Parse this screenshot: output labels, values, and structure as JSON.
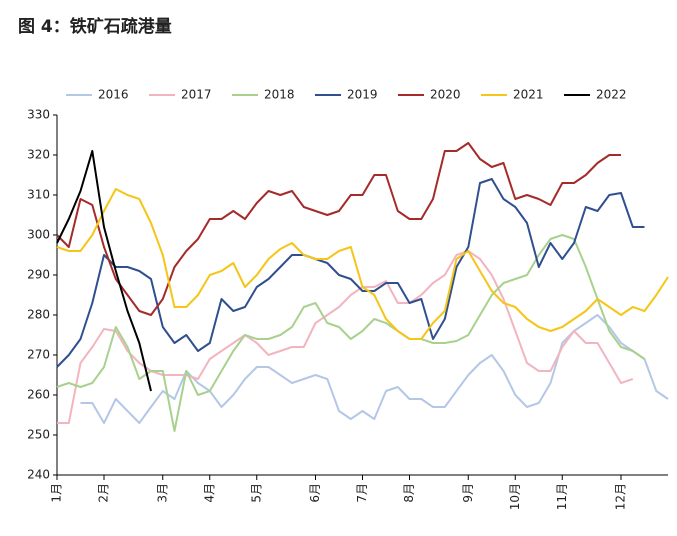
{
  "chart_data": {
    "type": "line",
    "title": "图 4：铁矿石疏港量",
    "categories": [
      "1月",
      null,
      null,
      null,
      "2月",
      null,
      null,
      null,
      null,
      "3月",
      null,
      null,
      null,
      "4月",
      null,
      null,
      null,
      "5月",
      null,
      null,
      null,
      null,
      "6月",
      null,
      null,
      null,
      "7月",
      null,
      null,
      null,
      "8月",
      null,
      null,
      null,
      null,
      "9月",
      null,
      null,
      null,
      "10月",
      null,
      null,
      null,
      "11月",
      null,
      null,
      null,
      null,
      "12月",
      null,
      null,
      null,
      null
    ],
    "ylim": [
      240,
      330
    ],
    "yticks": [
      240,
      250,
      260,
      270,
      280,
      290,
      300,
      310,
      320,
      330
    ],
    "grid": false,
    "legend": "top",
    "series": [
      {
        "name": "2016",
        "color": "#b4c7e7",
        "values": [
          null,
          null,
          258,
          258,
          253,
          259,
          256,
          253,
          257,
          261,
          259,
          266,
          263,
          261,
          257,
          260,
          264,
          267,
          267,
          265,
          263,
          264,
          265,
          264,
          256,
          254,
          256,
          254,
          261,
          262,
          259,
          259,
          257,
          257,
          261,
          265,
          268,
          270,
          266,
          260,
          257,
          258,
          263,
          273,
          276,
          278,
          280,
          277,
          273,
          271,
          269,
          261,
          259
        ]
      },
      {
        "name": "2017",
        "color": "#f2b5c0",
        "values": [
          253,
          253,
          268,
          272,
          276.5,
          276,
          271,
          268,
          266,
          265,
          265,
          265,
          264,
          269,
          271,
          273,
          275,
          273,
          270,
          271,
          272,
          272,
          278,
          280,
          282,
          285,
          287,
          287,
          288.5,
          283,
          283,
          285,
          288,
          290,
          295,
          296,
          294,
          290,
          284,
          276,
          268,
          266,
          266,
          272,
          276,
          273,
          273,
          268,
          263,
          264,
          null,
          null,
          null
        ]
      },
      {
        "name": "2018",
        "color": "#a9d18e",
        "values": [
          262,
          263,
          262,
          263,
          267,
          277,
          272,
          264,
          266,
          266,
          251,
          266,
          260,
          261,
          266,
          271,
          275,
          274,
          274,
          275,
          277,
          282,
          283,
          278,
          277,
          274,
          276,
          279,
          278,
          276,
          274,
          274,
          273,
          273,
          273.5,
          275,
          280,
          285,
          288,
          289,
          290,
          295,
          299,
          300,
          299,
          292,
          284,
          276,
          272,
          271,
          269,
          null,
          null
        ]
      },
      {
        "name": "2019",
        "color": "#2f4f8f",
        "values": [
          267,
          270,
          274,
          283,
          295,
          292,
          292,
          291,
          289,
          277,
          273,
          275,
          271,
          273,
          284,
          281,
          282,
          287,
          289,
          292,
          295,
          295,
          294,
          293,
          290,
          289,
          286,
          286,
          288,
          288,
          283,
          284,
          274,
          279,
          292,
          297,
          313,
          314,
          309,
          307,
          303,
          292,
          298,
          294,
          298,
          307,
          306,
          310,
          310.5,
          302,
          302,
          null,
          null
        ]
      },
      {
        "name": "2020",
        "color": "#a52a2a",
        "values": [
          300,
          297,
          309,
          307.5,
          297,
          289,
          285,
          281,
          280,
          284,
          292,
          296,
          299,
          304,
          304,
          306,
          304,
          308,
          311,
          310,
          311,
          307,
          306,
          305,
          306,
          310,
          310,
          315,
          315,
          306,
          304,
          304,
          309,
          321,
          321,
          323,
          319,
          317,
          318,
          309,
          310,
          309,
          307.5,
          313,
          313,
          315,
          318,
          320,
          320,
          null,
          null,
          null,
          null
        ]
      },
      {
        "name": "2021",
        "color": "#f5c518",
        "values": [
          297,
          296,
          296,
          300,
          306,
          311.5,
          310,
          309,
          303,
          295,
          282,
          282,
          285,
          290,
          291,
          293,
          287,
          290,
          294,
          296.5,
          298,
          295,
          294,
          294,
          296,
          297,
          287,
          285,
          279,
          276,
          274,
          274,
          278,
          281,
          294,
          296,
          291,
          286,
          283,
          282,
          279,
          277,
          276,
          277,
          279,
          281,
          284,
          282,
          280,
          282,
          281,
          285,
          289.5
        ]
      },
      {
        "name": "2022",
        "color": "#000000",
        "values": [
          298,
          304,
          311,
          321,
          302,
          291,
          281,
          273,
          261,
          null,
          null,
          null,
          null,
          null,
          null,
          null,
          null,
          null,
          null,
          null,
          null,
          null,
          null,
          null,
          null,
          null,
          null,
          null,
          null,
          null,
          null,
          null,
          null,
          null,
          null,
          null,
          null,
          null,
          null,
          null,
          null,
          null,
          null,
          null,
          null,
          null,
          null,
          null,
          null,
          null,
          null,
          null,
          null
        ]
      }
    ]
  }
}
